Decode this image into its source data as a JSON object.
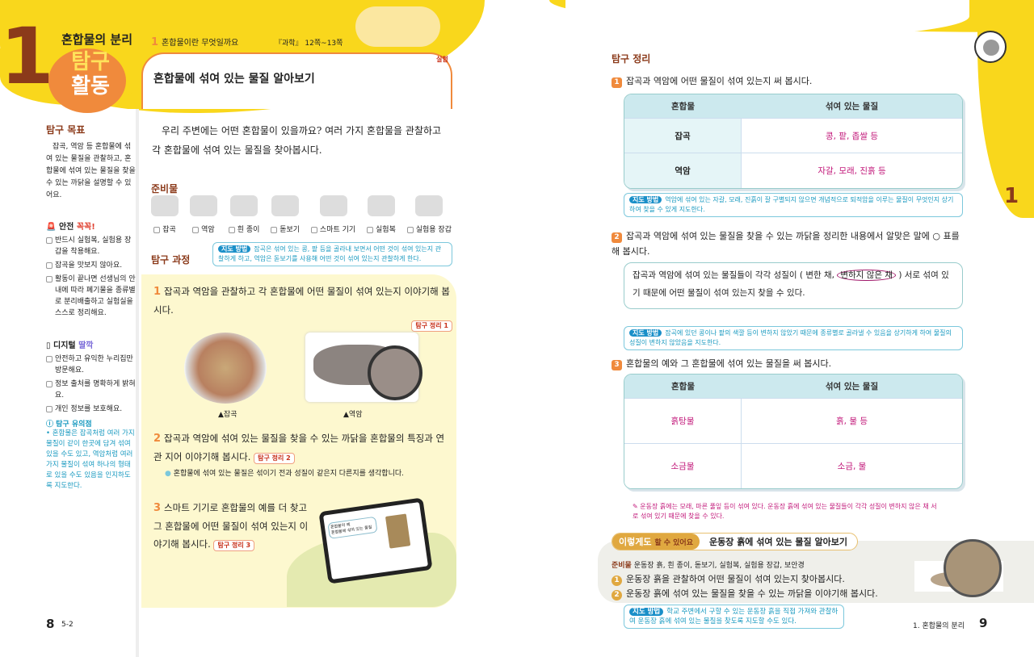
{
  "header": {
    "chapter_number": "1",
    "chapter_title": "혼합물의 분리",
    "badge_top": "탐구",
    "badge_bottom": "활동",
    "lesson_number": "1",
    "lesson_title": "혼합물이란 무엇일까요",
    "reference": "『과학』 12쪽~13쪽",
    "corner_tag": "실험",
    "activity_title": "혼합물에 섞여 있는 물질 알아보기"
  },
  "sidebar": {
    "goal_title": "탐구 목표",
    "goal_text": "잡곡, 역암 등 혼합물에 섞여 있는 물질을 관찰하고, 혼합물에 섞여 있는 물질을 찾을 수 있는 까닭을 설명할 수 있어요.",
    "safety_title": "안전",
    "safety_highlight": "꼭꼭!",
    "safety_items": [
      "반드시 실험복, 실험용 장갑을 착용해요.",
      "잡곡을 맛보지 않아요.",
      "활동이 끝나면 선생님의 안내에 따라 폐기물을 종류별로 분리배출하고 실험실을 스스로 정리해요."
    ],
    "digital_title": "디지털",
    "digital_highlight": "딸깍",
    "digital_items": [
      "안전하고 유익한 누리집만 방문해요.",
      "정보 출처를 명확하게 밝혀요.",
      "개인 정보를 보호해요."
    ],
    "caution_title": "탐구 유의점",
    "caution_text": "• 혼합물은 잡곡처럼 여러 가지 물질이 같이 한곳에 담겨 섞여 있을 수도 있고, 역암처럼 여러 가지 물질이 섞여 하나의 형태로 있을 수도 있음을 인지하도록 지도한다."
  },
  "intro": "우리 주변에는 어떤 혼합물이 있을까요? 여러 가지 혼합물을 관찰하고 각 혼합물에 섞여 있는 물질을 찾아봅시다.",
  "materials": {
    "title": "준비물",
    "items": [
      "잡곡",
      "역암",
      "흰 종이",
      "돋보기",
      "스마트 기기",
      "실험복",
      "실험용 장갑"
    ]
  },
  "process": {
    "title": "탐구 과정",
    "guide_label": "지도 방법",
    "guide_text": "잡곡은 섞여 있는 콩, 팥 등을 골라내 보면서 어떤 것이 섞여 있는지 관찰하게 하고, 역암은 돋보기를 사용해 어떤 것이 섞여 있는지 관찰하게 한다.",
    "steps": [
      {
        "n": "1",
        "text": "잡곡과 역암을 관찰하고 각 혼합물에 어떤 물질이 섞여 있는지 이야기해 봅시다.",
        "tag": "탐구 정리 1"
      },
      {
        "n": "2",
        "text": "잡곡과 역암에 섞여 있는 물질을 찾을 수 있는 까닭을 혼합물의 특징과 연관 지어 이야기해 봅시다.",
        "tag": "탐구 정리 2",
        "hint": "혼합물에 섞여 있는 물질은 섞이기 전과 성질이 같은지 다른지를 생각합니다."
      },
      {
        "n": "3",
        "text": "스마트 기기로 혼합물의 예를 더 찾고 그 혼합물에 어떤 물질이 섞여 있는지 이야기해 봅시다.",
        "tag": "탐구 정리 3"
      }
    ],
    "captions": [
      "▲잡곡",
      "▲역암"
    ],
    "tablet_search": [
      "혼합물의 예",
      "혼합물에 섞여 있는 물질"
    ]
  },
  "left_footer": {
    "page": "8",
    "code": "5-2"
  },
  "summary": {
    "title": "탐구 정리",
    "q1": {
      "n": "1",
      "text": "잡곡과 역암에 어떤 물질이 섞여 있는지 써 봅시다.",
      "headers": [
        "혼합물",
        "섞여 있는 물질"
      ],
      "rows": [
        [
          "잡곡",
          "콩, 팥, 좁쌀 등"
        ],
        [
          "역암",
          "자갈, 모래, 진흙 등"
        ]
      ],
      "guide": "역암에 섞여 있는 자갈, 모래, 진흙이 잘 구별되지 않으면 개념적으로 퇴적암을 이루는 물질이 무엇인지 상기하여 찾을 수 있게 지도한다."
    },
    "q2": {
      "n": "2",
      "text": "잡곡과 역암에 섞여 있는 물질을 찾을 수 있는 까닭을 정리한 내용에서 알맞은 말에 ○ 표를 해 봅시다.",
      "answer_pre": "잡곡과 역암에 섞여 있는 물질들이 각각 성질이 ( 변한 채, ",
      "answer_circled": "변하지 않은 채",
      "answer_post": " ) 서로 섞여 있기 때문에 어떤 물질이 섞여 있는지 찾을 수 있다.",
      "guide": "잡곡에 있던 콩이나 팥의 색깔 등이 변하지 않았기 때문에 종류별로 골라낼 수 있음을 상기하게 하여 물질의 성질이 변하지 않았음을 지도한다."
    },
    "q3": {
      "n": "3",
      "text": "혼합물의 예와 그 혼합물에 섞여 있는 물질을 써 봅시다.",
      "headers": [
        "혼합물",
        "섞여 있는 물질"
      ],
      "rows": [
        [
          "흙탕물",
          "흙, 물 등"
        ],
        [
          "소금물",
          "소금, 물"
        ]
      ]
    }
  },
  "extra": {
    "answer_note": "운동장 흙에는 모래, 마른 풀잎 등이 섞여 있다. 운동장 흙에 섞여 있는 물질들이 각각 성질이 변하지 않은 채 서로 섞여 있기 때문에 찾을 수 있다.",
    "badge_a": "이렇게도",
    "badge_b": "할 수 있어요",
    "title": "운동장 흙에 섞여 있는 물질 알아보기",
    "materials_label": "준비물",
    "materials": "운동장 흙, 흰 종이, 돋보기, 실험복, 실험용 장갑, 보안경",
    "steps": [
      {
        "n": "1",
        "text": "운동장 흙을 관찰하여 어떤 물질이 섞여 있는지 찾아봅시다."
      },
      {
        "n": "2",
        "text": "운동장 흙에 섞여 있는 물질을 찾을 수 있는 까닭을 이야기해 봅시다."
      }
    ],
    "guide": "학교 주변에서 구할 수 있는 운동장 흙을 직접 가져와 관찰하여 운동장 흙에 섞여 있는 물질을 찾도록 지도할 수도 있다."
  },
  "right_footer": {
    "chapter": "1. 혼합물의 분리",
    "page": "9"
  },
  "right_tab": "1",
  "colors": {
    "yellow": "#f9d71c",
    "orange": "#f08a3c",
    "brown": "#8b3a1a",
    "teal": "#1a9ac0",
    "magenta": "#c2187a"
  }
}
